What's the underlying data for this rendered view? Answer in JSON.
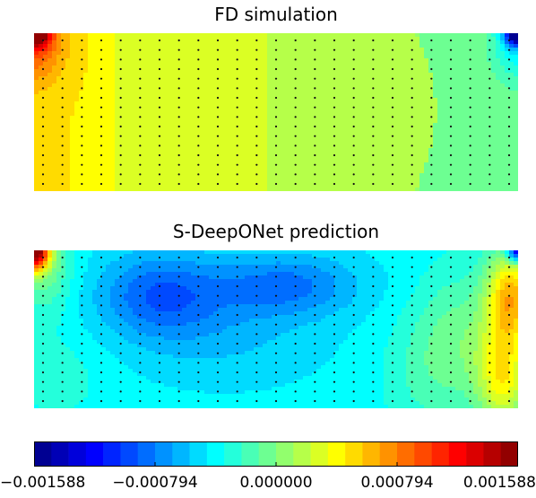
{
  "chart_data": {
    "type": "heatmap",
    "colormap": "jet",
    "panels": [
      {
        "title": "FD simulation",
        "description": "near-uniform field, yellow-green on left, green center, cyan-green right; strong hot spot at top-left corner, strong cold spot at top-right corner"
      },
      {
        "title": "S-DeepONet prediction",
        "description": "blue low region in upper-left/center, cyan bulk, orange/yellow band on right side, hot top-left corner, cold top-right corner"
      }
    ],
    "colorbar": {
      "min": -0.001588,
      "max": 0.001588,
      "levels": 28,
      "tick_values": [
        -0.001588,
        -0.000794,
        0.0,
        0.000794,
        0.001588
      ],
      "tick_labels": [
        "−0.001588",
        "−0.000794",
        "0.000000",
        "0.000794",
        "0.001588"
      ]
    },
    "grid": false
  }
}
